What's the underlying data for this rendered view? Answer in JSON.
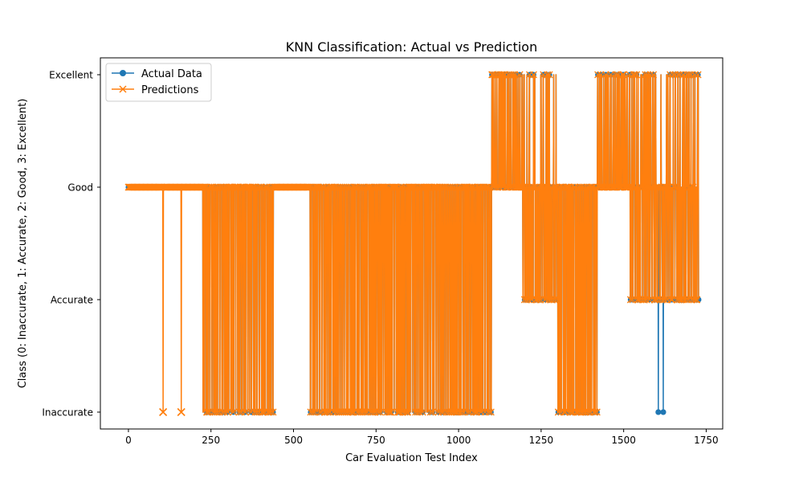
{
  "chart_data": {
    "type": "line",
    "title": "KNN Classification: Actual vs Prediction",
    "xlabel": "Car Evaluation Test Index",
    "ylabel": "Class (0: Inaccurate, 1: Accurate, 2: Good, 3: Excellent)",
    "xlim": [
      -85,
      1800
    ],
    "ylim": [
      -0.15,
      3.15
    ],
    "xticks": [
      0,
      250,
      500,
      750,
      1000,
      1250,
      1500,
      1750
    ],
    "xtick_labels": [
      "0",
      "250",
      "500",
      "750",
      "1000",
      "1250",
      "1500",
      "1750"
    ],
    "yticks": [
      0,
      1,
      2,
      3
    ],
    "ytick_labels": [
      "Inaccurate",
      "Accurate",
      "Good",
      "Excellent"
    ],
    "grid": false,
    "legend_position": "top-left",
    "x_range": [
      0,
      1727
    ],
    "series": [
      {
        "name": "Actual Data",
        "color": "#1f77b4",
        "marker": "circle",
        "default_class": 2,
        "segments": [
          {
            "x": [
              0,
              225
            ],
            "value": 2
          },
          {
            "x": [
              226,
              440
            ],
            "value": 0
          },
          {
            "x": [
              441,
              550
            ],
            "value": 2
          },
          {
            "x": [
              551,
              1100
            ],
            "value": 0
          },
          {
            "x": [
              1101,
              1300
            ],
            "value": 3
          },
          {
            "x": [
              1195,
              1300
            ],
            "value": 1
          },
          {
            "x": [
              1301,
              1420
            ],
            "value": 0
          },
          {
            "x": [
              1421,
              1727
            ],
            "value": 3
          },
          {
            "x": [
              1520,
              1727
            ],
            "value": 1
          }
        ],
        "isolated": [
          {
            "x": 1605,
            "value": 0
          },
          {
            "x": 1620,
            "value": 0
          }
        ]
      },
      {
        "name": "Predictions",
        "color": "#ff7f0e",
        "marker": "x",
        "default_class": 2,
        "segments": [
          {
            "x": [
              0,
              225
            ],
            "value": 2
          },
          {
            "x": [
              226,
              440
            ],
            "value": 0
          },
          {
            "x": [
              441,
              550
            ],
            "value": 2
          },
          {
            "x": [
              551,
              1100
            ],
            "value": 0
          },
          {
            "x": [
              1101,
              1300
            ],
            "value": 3
          },
          {
            "x": [
              1195,
              1300
            ],
            "value": 1
          },
          {
            "x": [
              1301,
              1420
            ],
            "value": 0
          },
          {
            "x": [
              1421,
              1727
            ],
            "value": 3
          },
          {
            "x": [
              1520,
              1727
            ],
            "value": 1
          }
        ],
        "isolated": [
          {
            "x": 105,
            "value": 0
          },
          {
            "x": 160,
            "value": 0
          }
        ]
      }
    ]
  }
}
